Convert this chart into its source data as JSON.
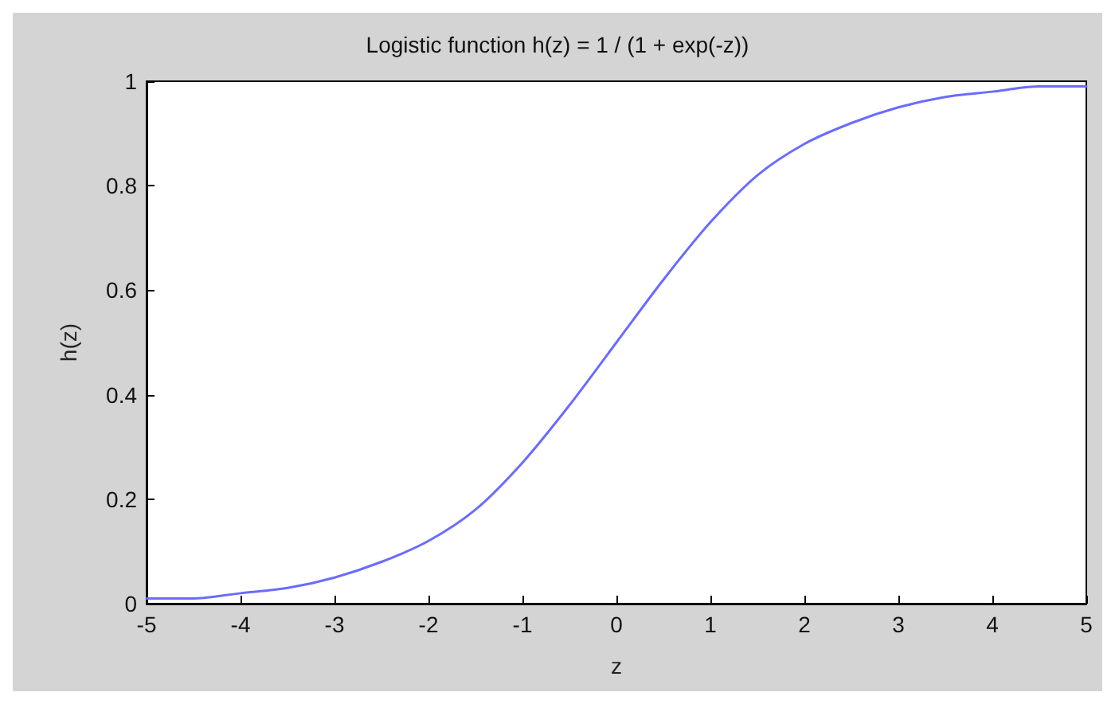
{
  "chart_data": {
    "type": "line",
    "title": "Logistic function h(z) = 1 / (1 + exp(-z))",
    "xlabel": "z",
    "ylabel": "h(z)",
    "x": [
      -5,
      -4.5,
      -4,
      -3.5,
      -3,
      -2.5,
      -2,
      -1.5,
      -1,
      -0.5,
      0,
      0.5,
      1,
      1.5,
      2,
      2.5,
      3,
      3.5,
      4,
      4.5,
      5
    ],
    "series": [
      {
        "color": "#6b6bff",
        "values": [
          0.01,
          0.01,
          0.02,
          0.03,
          0.05,
          0.08,
          0.12,
          0.18,
          0.27,
          0.38,
          0.5,
          0.62,
          0.73,
          0.82,
          0.88,
          0.92,
          0.95,
          0.97,
          0.98,
          0.99,
          0.99
        ]
      }
    ],
    "xlim": [
      -5,
      5
    ],
    "xticks": [
      -5,
      -4,
      -3,
      -2,
      -1,
      0,
      1,
      2,
      3,
      4,
      5
    ],
    "ylim": [
      0,
      1
    ],
    "yticks": [
      0,
      0.2,
      0.4,
      0.6,
      0.8,
      1
    ],
    "grid": false,
    "marker": "none",
    "line_style": "solid"
  }
}
